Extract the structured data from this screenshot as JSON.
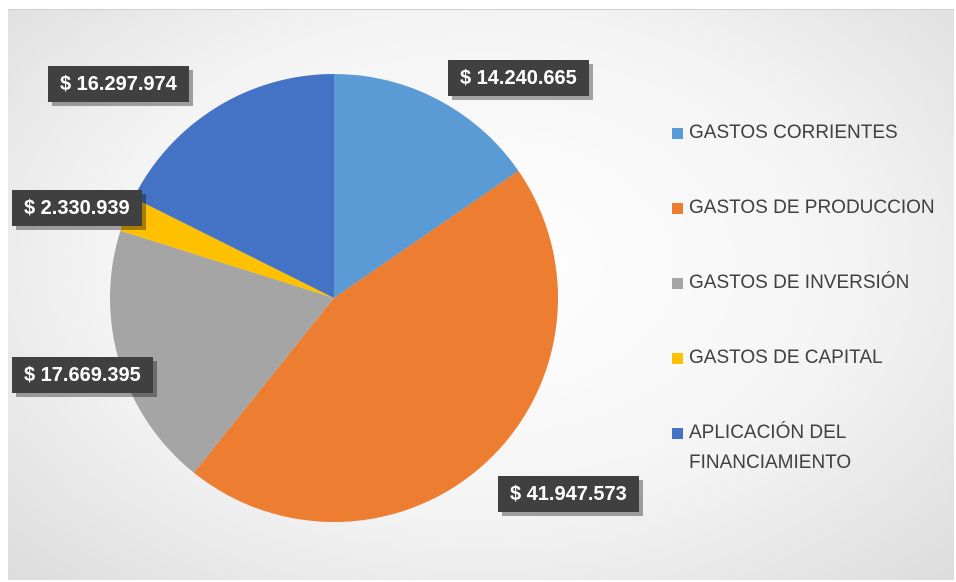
{
  "chart_data": {
    "type": "pie",
    "categories": [
      "GASTOS CORRIENTES",
      "GASTOS DE PRODUCCION",
      "GASTOS DE INVERSIÓN",
      "GASTOS DE CAPITAL",
      "APLICACIÓN DEL FINANCIAMIENTO"
    ],
    "values": [
      14240665,
      41947573,
      17669395,
      2330939,
      16297974
    ],
    "data_labels": [
      "$ 14.240.665",
      "$ 41.947.573",
      "$ 17.669.395",
      "$ 2.330.939",
      "$ 16.297.974"
    ],
    "colors": [
      "#5B9BD5",
      "#ED7D31",
      "#A5A5A5",
      "#FFC000",
      "#4472C4"
    ],
    "legend_placement": "right"
  }
}
